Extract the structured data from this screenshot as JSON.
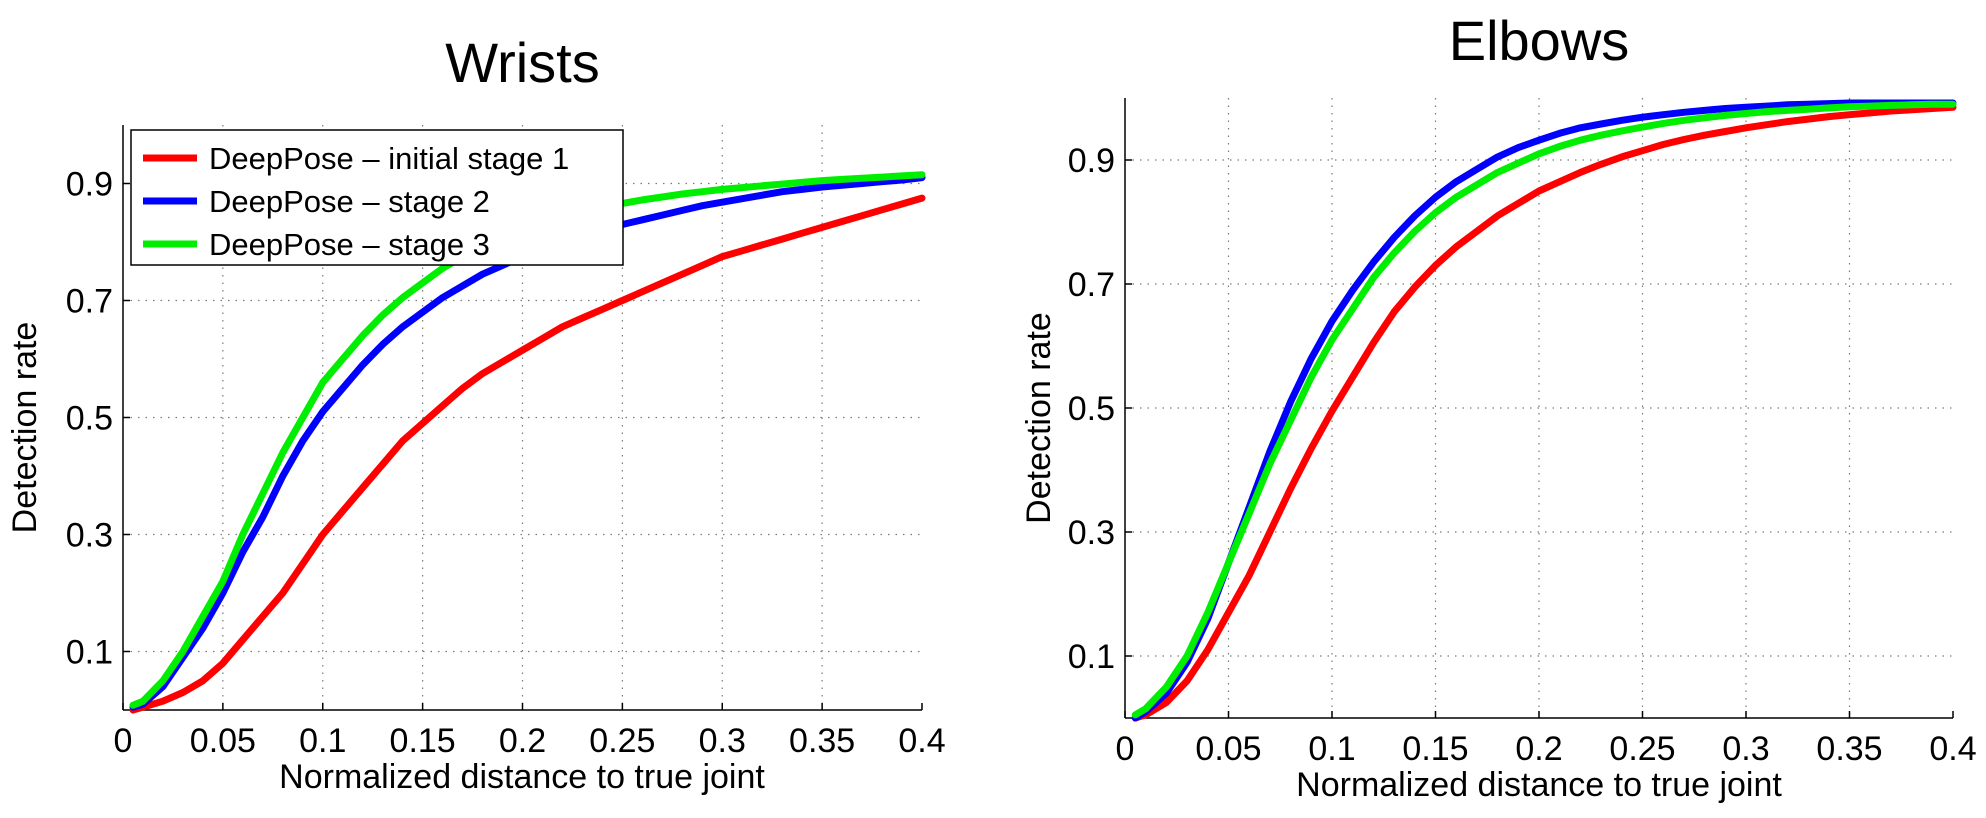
{
  "chart_data": [
    {
      "type": "line",
      "title": "Wrists",
      "xlabel": "Normalized distance to true joint",
      "ylabel": "Detection rate",
      "xlim": [
        0,
        0.4
      ],
      "ylim": [
        0,
        1.0
      ],
      "xticks": [
        "0",
        "0.05",
        "0.1",
        "0.15",
        "0.2",
        "0.25",
        "0.3",
        "0.35",
        "0.4"
      ],
      "xtick_values": [
        0,
        0.05,
        0.1,
        0.15,
        0.2,
        0.25,
        0.3,
        0.35,
        0.4
      ],
      "yticks": [
        "0.1",
        "0.3",
        "0.5",
        "0.7",
        "0.9"
      ],
      "ytick_values": [
        0.1,
        0.3,
        0.5,
        0.7,
        0.9
      ],
      "grid": true,
      "legend_position": "top-left",
      "x": [
        0.005,
        0.01,
        0.02,
        0.03,
        0.04,
        0.05,
        0.06,
        0.07,
        0.08,
        0.09,
        0.1,
        0.11,
        0.12,
        0.13,
        0.14,
        0.15,
        0.16,
        0.17,
        0.18,
        0.19,
        0.2,
        0.21,
        0.22,
        0.23,
        0.24,
        0.25,
        0.26,
        0.27,
        0.28,
        0.29,
        0.3,
        0.31,
        0.32,
        0.33,
        0.34,
        0.35,
        0.36,
        0.37,
        0.38,
        0.39,
        0.4
      ],
      "series": [
        {
          "name": "DeepPose – initial stage 1",
          "color": "#ff0000",
          "values": [
            0.0,
            0.005,
            0.015,
            0.03,
            0.05,
            0.08,
            0.12,
            0.16,
            0.2,
            0.25,
            0.3,
            0.34,
            0.38,
            0.42,
            0.46,
            0.49,
            0.52,
            0.55,
            0.575,
            0.595,
            0.615,
            0.635,
            0.655,
            0.67,
            0.685,
            0.7,
            0.715,
            0.73,
            0.745,
            0.76,
            0.775,
            0.785,
            0.795,
            0.805,
            0.815,
            0.825,
            0.835,
            0.845,
            0.855,
            0.865,
            0.875
          ]
        },
        {
          "name": "DeepPose – stage 2",
          "color": "#0000ff",
          "values": [
            0.005,
            0.01,
            0.04,
            0.09,
            0.14,
            0.2,
            0.27,
            0.33,
            0.4,
            0.46,
            0.51,
            0.55,
            0.59,
            0.625,
            0.655,
            0.68,
            0.705,
            0.725,
            0.745,
            0.76,
            0.775,
            0.79,
            0.8,
            0.81,
            0.82,
            0.83,
            0.838,
            0.846,
            0.854,
            0.862,
            0.868,
            0.874,
            0.88,
            0.886,
            0.89,
            0.894,
            0.897,
            0.9,
            0.903,
            0.906,
            0.91
          ]
        },
        {
          "name": "DeepPose – stage 3",
          "color": "#00ee00",
          "values": [
            0.008,
            0.015,
            0.05,
            0.1,
            0.16,
            0.22,
            0.3,
            0.37,
            0.44,
            0.5,
            0.56,
            0.6,
            0.64,
            0.675,
            0.705,
            0.73,
            0.755,
            0.775,
            0.795,
            0.81,
            0.825,
            0.835,
            0.845,
            0.853,
            0.86,
            0.866,
            0.872,
            0.877,
            0.882,
            0.886,
            0.89,
            0.893,
            0.896,
            0.899,
            0.902,
            0.905,
            0.907,
            0.909,
            0.911,
            0.913,
            0.915
          ]
        }
      ]
    },
    {
      "type": "line",
      "title": "Elbows",
      "xlabel": "Normalized distance to true joint",
      "ylabel": "Detection rate",
      "xlim": [
        0,
        0.4
      ],
      "ylim": [
        0,
        1.0
      ],
      "xticks": [
        "0",
        "0.05",
        "0.1",
        "0.15",
        "0.2",
        "0.25",
        "0.3",
        "0.35",
        "0.4"
      ],
      "xtick_values": [
        0,
        0.05,
        0.1,
        0.15,
        0.2,
        0.25,
        0.3,
        0.35,
        0.4
      ],
      "yticks": [
        "0.1",
        "0.3",
        "0.5",
        "0.7",
        "0.9"
      ],
      "ytick_values": [
        0.1,
        0.3,
        0.5,
        0.7,
        0.9
      ],
      "grid": true,
      "x": [
        0.005,
        0.01,
        0.02,
        0.03,
        0.04,
        0.05,
        0.06,
        0.07,
        0.08,
        0.09,
        0.1,
        0.11,
        0.12,
        0.13,
        0.14,
        0.15,
        0.16,
        0.17,
        0.18,
        0.19,
        0.2,
        0.21,
        0.22,
        0.23,
        0.24,
        0.25,
        0.26,
        0.27,
        0.28,
        0.29,
        0.3,
        0.31,
        0.32,
        0.33,
        0.34,
        0.35,
        0.36,
        0.37,
        0.38,
        0.39,
        0.4
      ],
      "series": [
        {
          "name": "DeepPose – initial stage 1",
          "color": "#ff0000",
          "values": [
            0.0,
            0.005,
            0.025,
            0.06,
            0.11,
            0.17,
            0.23,
            0.3,
            0.37,
            0.435,
            0.495,
            0.55,
            0.605,
            0.655,
            0.695,
            0.73,
            0.76,
            0.785,
            0.81,
            0.83,
            0.85,
            0.865,
            0.88,
            0.893,
            0.905,
            0.915,
            0.925,
            0.933,
            0.94,
            0.946,
            0.952,
            0.957,
            0.962,
            0.966,
            0.97,
            0.973,
            0.976,
            0.979,
            0.981,
            0.983,
            0.985
          ]
        },
        {
          "name": "DeepPose – stage 2",
          "color": "#0000ff",
          "values": [
            0.0,
            0.01,
            0.04,
            0.09,
            0.16,
            0.25,
            0.34,
            0.43,
            0.51,
            0.58,
            0.64,
            0.69,
            0.735,
            0.775,
            0.81,
            0.84,
            0.865,
            0.885,
            0.905,
            0.92,
            0.932,
            0.943,
            0.952,
            0.958,
            0.964,
            0.969,
            0.973,
            0.977,
            0.98,
            0.983,
            0.985,
            0.987,
            0.989,
            0.99,
            0.991,
            0.992,
            0.992,
            0.992,
            0.992,
            0.992,
            0.992
          ]
        },
        {
          "name": "DeepPose – stage 3",
          "color": "#00ee00",
          "values": [
            0.005,
            0.015,
            0.05,
            0.1,
            0.17,
            0.25,
            0.33,
            0.41,
            0.48,
            0.55,
            0.61,
            0.66,
            0.71,
            0.75,
            0.785,
            0.815,
            0.84,
            0.86,
            0.88,
            0.895,
            0.91,
            0.922,
            0.932,
            0.94,
            0.947,
            0.953,
            0.959,
            0.964,
            0.968,
            0.972,
            0.975,
            0.978,
            0.98,
            0.982,
            0.984,
            0.986,
            0.987,
            0.988,
            0.989,
            0.99,
            0.99
          ]
        }
      ]
    }
  ]
}
